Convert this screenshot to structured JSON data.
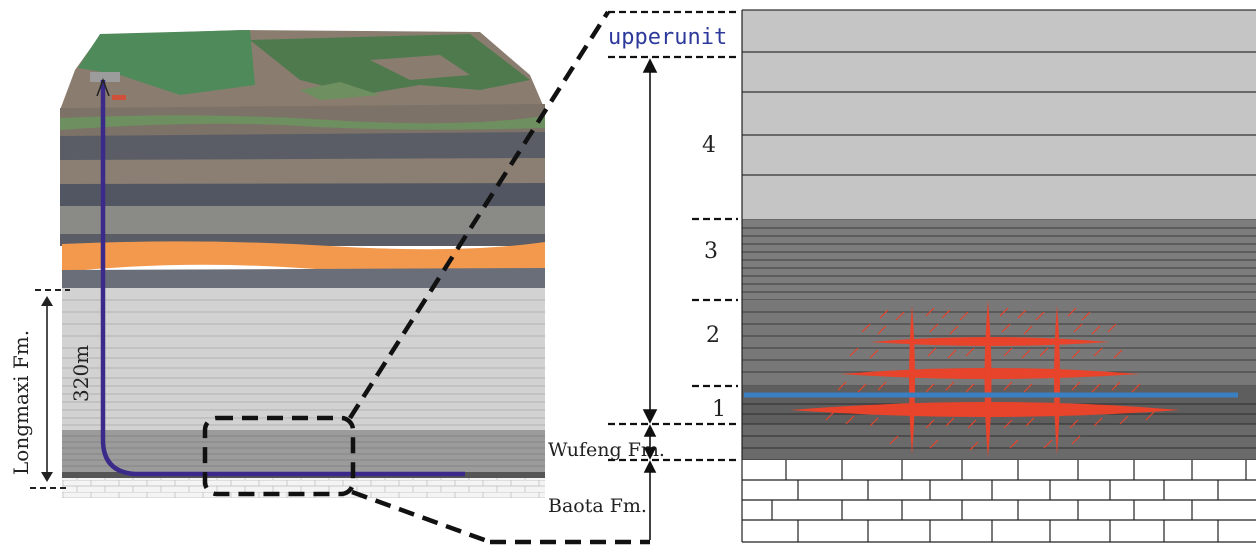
{
  "left": {
    "thickness_label": "320m",
    "formation_longmaxi": "Longmaxi Fm.",
    "formation_wufeng": "Wufeng Fm.",
    "formation_baota": "Baota Fm."
  },
  "right": {
    "upper_unit": "upperunit",
    "units": [
      "1",
      "2",
      "3",
      "4"
    ]
  },
  "colors": {
    "well_path": "#3b2a8a",
    "fracture": "#e8432b",
    "horizontal_well": "#3a7fc1",
    "orange_layer": "#f2994e",
    "green_surface": "#4f8a5a"
  }
}
